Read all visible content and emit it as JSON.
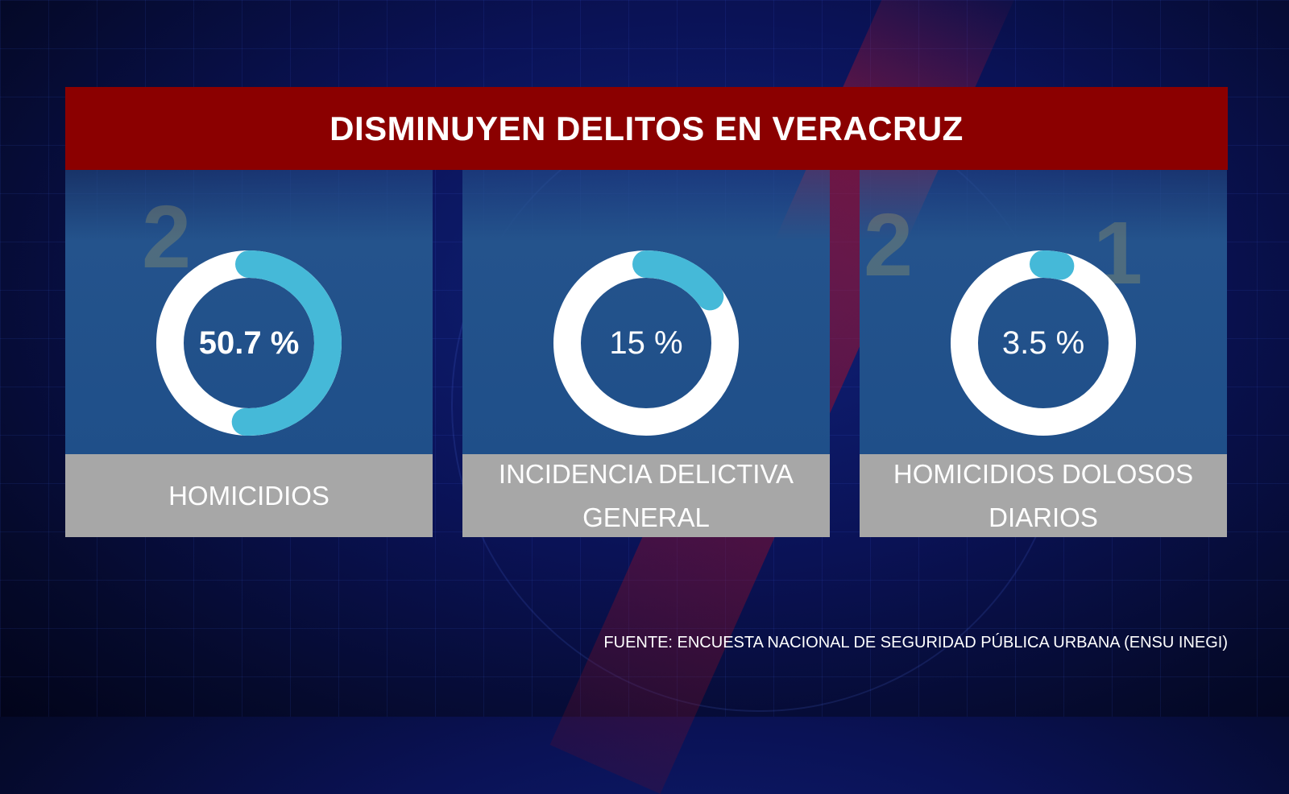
{
  "title": "DISMINUYEN DELITOS EN VERACRUZ",
  "colors": {
    "title_bar": "#8b0000",
    "donut_track": "#ffffff",
    "donut_fill": "#45b9d8",
    "panel_top": "#1f4f89",
    "panel_bottom": "#a7a7a7",
    "text": "#ffffff"
  },
  "chart_data": [
    {
      "type": "pie",
      "variant": "donut",
      "value": 50.7,
      "max": 100,
      "value_label": "50.7 %",
      "category": "HOMICIDIOS"
    },
    {
      "type": "pie",
      "variant": "donut",
      "value": 15,
      "max": 100,
      "value_label": "15 %",
      "category": "INCIDENCIA DELICTIVA GENERAL"
    },
    {
      "type": "pie",
      "variant": "donut",
      "value": 3.5,
      "max": 100,
      "value_label": "3.5 %",
      "category": "HOMICIDIOS DOLOSOS DIARIOS"
    }
  ],
  "source": "FUENTE: ENCUESTA NACIONAL DE SEGURIDAD PÚBLICA URBANA (ENSU INEGI)"
}
